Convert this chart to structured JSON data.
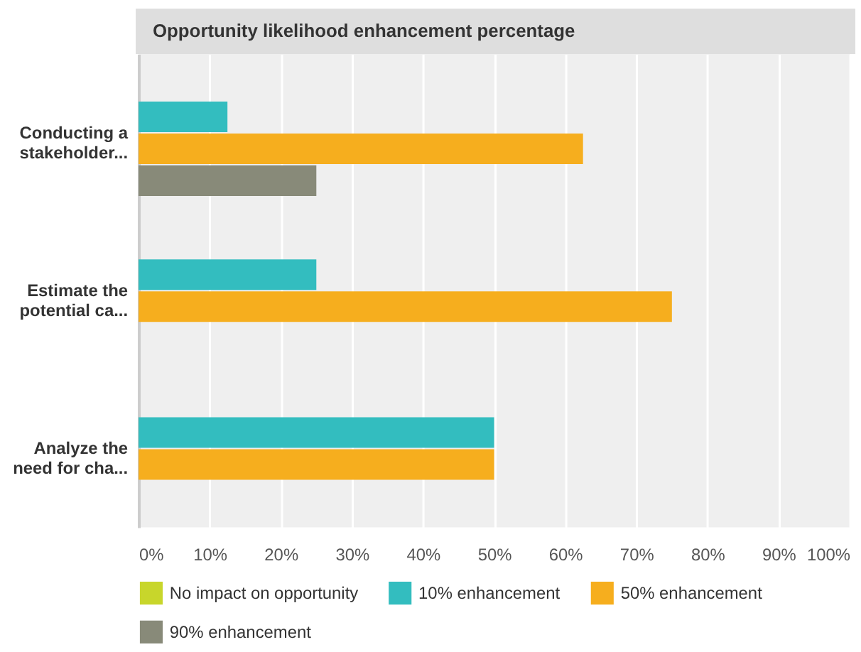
{
  "chart_data": {
    "type": "bar",
    "orientation": "horizontal",
    "title": "Opportunity likelihood enhancement percentage",
    "categories": [
      "Conducting a stakeholder...",
      "Estimate the potential ca...",
      "Analyze the need for cha..."
    ],
    "series": [
      {
        "name": "No impact on opportunity",
        "color": "#c8d62b",
        "values": [
          null,
          null,
          null
        ]
      },
      {
        "name": "10% enhancement",
        "color": "#33bdbf",
        "values": [
          12.5,
          25,
          50
        ]
      },
      {
        "name": "50% enhancement",
        "color": "#f6ae1e",
        "values": [
          62.5,
          75,
          50
        ]
      },
      {
        "name": "90% enhancement",
        "color": "#888a79",
        "values": [
          25,
          null,
          null
        ]
      }
    ],
    "xlim": [
      0,
      100
    ],
    "xticks": [
      {
        "value": 0,
        "label": "0%"
      },
      {
        "value": 10,
        "label": "10%"
      },
      {
        "value": 20,
        "label": "20%"
      },
      {
        "value": 30,
        "label": "30%"
      },
      {
        "value": 40,
        "label": "40%"
      },
      {
        "value": 50,
        "label": "50%"
      },
      {
        "value": 60,
        "label": "60%"
      },
      {
        "value": 70,
        "label": "70%"
      },
      {
        "value": 80,
        "label": "80%"
      },
      {
        "value": 90,
        "label": "90%"
      },
      {
        "value": 100,
        "label": "100%"
      }
    ],
    "grid": "x",
    "legend": "bottom"
  }
}
